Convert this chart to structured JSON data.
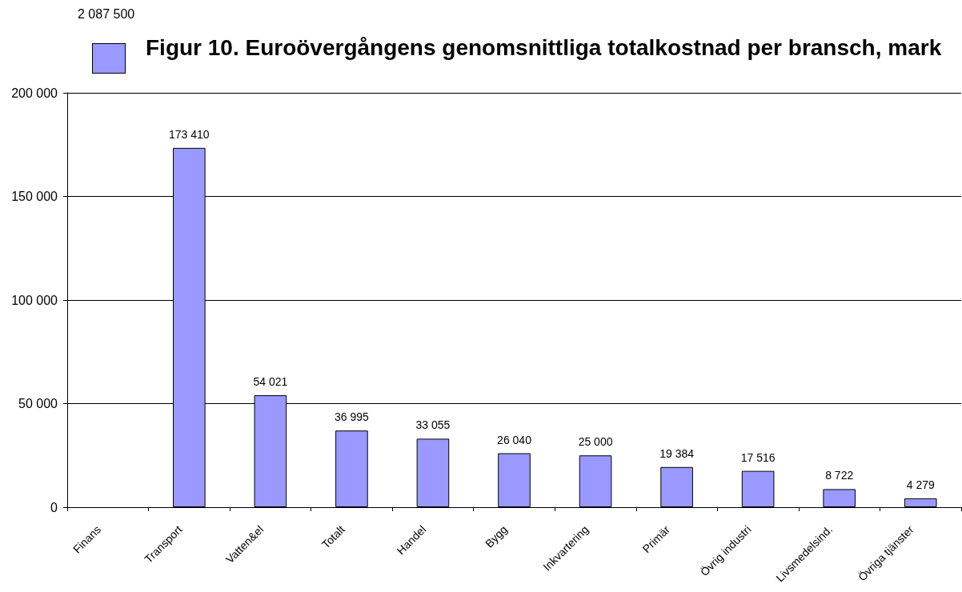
{
  "chart_data": {
    "type": "bar",
    "title": "Figur 10. Euroövergångens genomsnittliga totalkostnad per bransch, mark",
    "categories": [
      "Finans",
      "Transport",
      "Vatten&el",
      "Totalt",
      "Handel",
      "Bygg",
      "Inkvartering",
      "Primär",
      "Övrig industri",
      "Livsmedelsind.",
      "Övriga tjänster"
    ],
    "values": [
      null,
      173410,
      54021,
      36995,
      33055,
      26040,
      25000,
      19384,
      17516,
      8722,
      4279
    ],
    "color": "#9999ff",
    "value_labels": [
      null,
      "173 410",
      "54 021",
      "36 995",
      "33 055",
      "26 040",
      "25 000",
      "19 384",
      "17 516",
      "8 722",
      "4 279"
    ],
    "annotations": [
      "2 087 500"
    ],
    "ylim": [
      0,
      200000
    ],
    "yticks": [
      0,
      {
        "value": 50000,
        "label": "50 000"
      },
      {
        "value": 100000,
        "label": "100 000"
      },
      {
        "value": 150000,
        "label": "150 000"
      },
      {
        "value": 200000,
        "label": "200 000"
      }
    ],
    "grid": "y"
  }
}
